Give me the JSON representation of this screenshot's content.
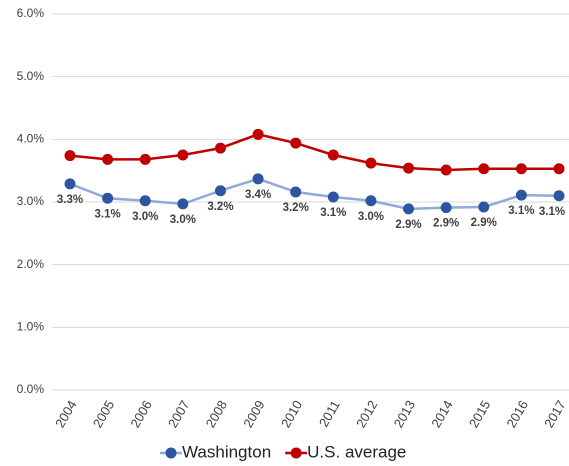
{
  "chart_data": {
    "type": "line",
    "categories": [
      "2004",
      "2005",
      "2006",
      "2007",
      "2008",
      "2009",
      "2010",
      "2011",
      "2012",
      "2013",
      "2014",
      "2015",
      "2016",
      "2017"
    ],
    "series": [
      {
        "name": "Washington",
        "color": "#2e55a0",
        "line_color": "#8eaadb",
        "values": [
          3.29,
          3.06,
          3.02,
          2.97,
          3.18,
          3.37,
          3.16,
          3.08,
          3.02,
          2.89,
          2.91,
          2.92,
          3.11,
          3.1
        ],
        "value_labels": [
          "3.3%",
          "3.1%",
          "3.0%",
          "3.0%",
          "3.2%",
          "3.4%",
          "3.2%",
          "3.1%",
          "3.0%",
          "2.9%",
          "2.9%",
          "2.9%",
          "3.1%",
          "3.1%"
        ]
      },
      {
        "name": "U.S. average",
        "color": "#c00000",
        "line_color": "#c00000",
        "values": [
          3.74,
          3.68,
          3.68,
          3.75,
          3.86,
          4.08,
          3.94,
          3.75,
          3.62,
          3.54,
          3.51,
          3.53,
          3.53,
          3.53
        ]
      }
    ],
    "ylim": [
      0,
      6
    ],
    "yticks": [
      {
        "value": 0,
        "label": "0.0%"
      },
      {
        "value": 1,
        "label": "1.0%"
      },
      {
        "value": 2,
        "label": "2.0%"
      },
      {
        "value": 3,
        "label": "3.0%"
      },
      {
        "value": 4,
        "label": "4.0%"
      },
      {
        "value": 5,
        "label": "5.0%"
      },
      {
        "value": 6,
        "label": "6.0%"
      }
    ],
    "grid": true,
    "legend": "bottom"
  }
}
